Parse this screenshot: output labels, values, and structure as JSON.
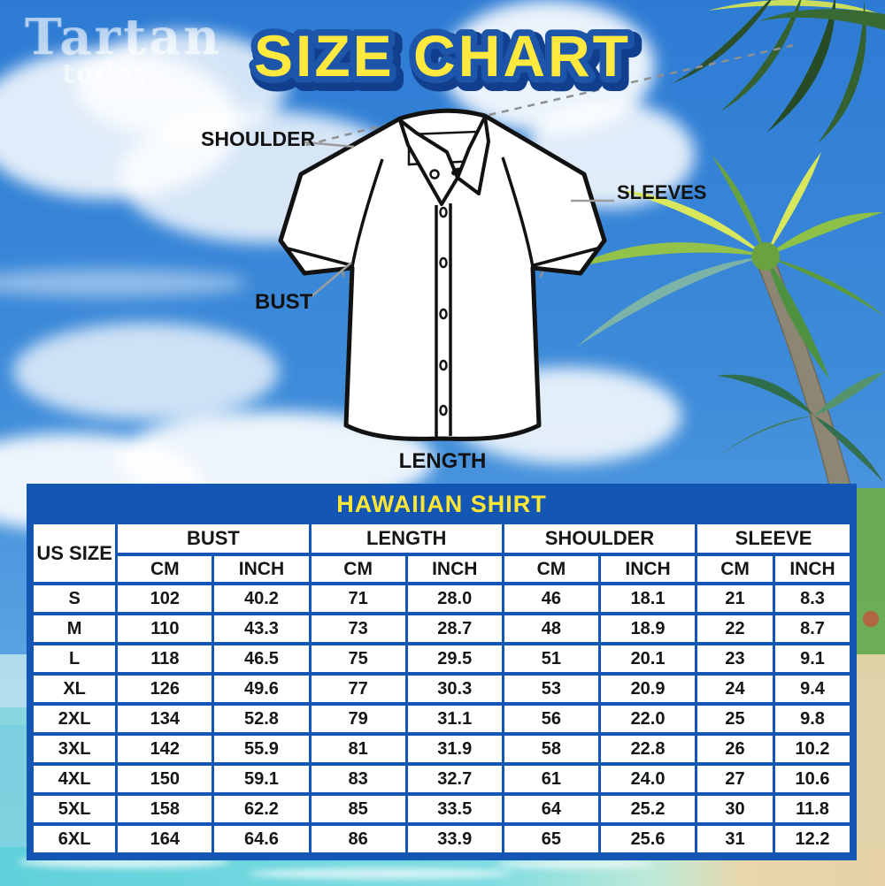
{
  "brand": {
    "name": "Tartan",
    "tagline": "today"
  },
  "title": "SIZE CHART",
  "diagram": {
    "shoulder_label": "SHOULDER",
    "sleeves_label": "SLEEVES",
    "bust_label": "BUST",
    "length_label": "LENGTH"
  },
  "table": {
    "title": "HAWAIIAN SHIRT",
    "size_col_header": "US SIZE",
    "groups": [
      "BUST",
      "LENGTH",
      "SHOULDER",
      "SLEEVE"
    ],
    "units": [
      "CM",
      "INCH"
    ],
    "rows": [
      {
        "size": "S",
        "values": [
          "102",
          "40.2",
          "71",
          "28.0",
          "46",
          "18.1",
          "21",
          "8.3"
        ]
      },
      {
        "size": "M",
        "values": [
          "110",
          "43.3",
          "73",
          "28.7",
          "48",
          "18.9",
          "22",
          "8.7"
        ]
      },
      {
        "size": "L",
        "values": [
          "118",
          "46.5",
          "75",
          "29.5",
          "51",
          "20.1",
          "23",
          "9.1"
        ]
      },
      {
        "size": "XL",
        "values": [
          "126",
          "49.6",
          "77",
          "30.3",
          "53",
          "20.9",
          "24",
          "9.4"
        ]
      },
      {
        "size": "2XL",
        "values": [
          "134",
          "52.8",
          "79",
          "31.1",
          "56",
          "22.0",
          "25",
          "9.8"
        ]
      },
      {
        "size": "3XL",
        "values": [
          "142",
          "55.9",
          "81",
          "31.9",
          "58",
          "22.8",
          "26",
          "10.2"
        ]
      },
      {
        "size": "4XL",
        "values": [
          "150",
          "59.1",
          "83",
          "32.7",
          "61",
          "24.0",
          "27",
          "10.6"
        ]
      },
      {
        "size": "5XL",
        "values": [
          "158",
          "62.2",
          "85",
          "33.5",
          "64",
          "25.2",
          "30",
          "11.8"
        ]
      },
      {
        "size": "6XL",
        "values": [
          "164",
          "64.6",
          "86",
          "33.9",
          "65",
          "25.6",
          "31",
          "12.2"
        ]
      }
    ]
  },
  "chart_data": {
    "type": "table",
    "title": "HAWAIIAN SHIRT",
    "columns": [
      "US SIZE",
      "BUST CM",
      "BUST INCH",
      "LENGTH CM",
      "LENGTH INCH",
      "SHOULDER CM",
      "SHOULDER INCH",
      "SLEEVE CM",
      "SLEEVE INCH"
    ],
    "rows": [
      [
        "S",
        102,
        40.2,
        71,
        28.0,
        46,
        18.1,
        21,
        8.3
      ],
      [
        "M",
        110,
        43.3,
        73,
        28.7,
        48,
        18.9,
        22,
        8.7
      ],
      [
        "L",
        118,
        46.5,
        75,
        29.5,
        51,
        20.1,
        23,
        9.1
      ],
      [
        "XL",
        126,
        49.6,
        77,
        30.3,
        53,
        20.9,
        24,
        9.4
      ],
      [
        "2XL",
        134,
        52.8,
        79,
        31.1,
        56,
        22.0,
        25,
        9.8
      ],
      [
        "3XL",
        142,
        55.9,
        81,
        31.9,
        58,
        22.8,
        26,
        10.2
      ],
      [
        "4XL",
        150,
        59.1,
        83,
        32.7,
        61,
        24.0,
        27,
        10.6
      ],
      [
        "5XL",
        158,
        62.2,
        85,
        33.5,
        64,
        25.2,
        30,
        11.8
      ],
      [
        "6XL",
        164,
        64.6,
        86,
        33.9,
        65,
        25.6,
        31,
        12.2
      ]
    ]
  },
  "colors": {
    "table_blue": "#1356b4",
    "banner_text_yellow": "#ffe634",
    "title_yellow": "#ffe93e",
    "title_outline_blue": "#1d55ab",
    "sky_blue": "#2d7bd4",
    "sea_turquoise": "#5fd0da",
    "sand": "#e9d7ab"
  }
}
